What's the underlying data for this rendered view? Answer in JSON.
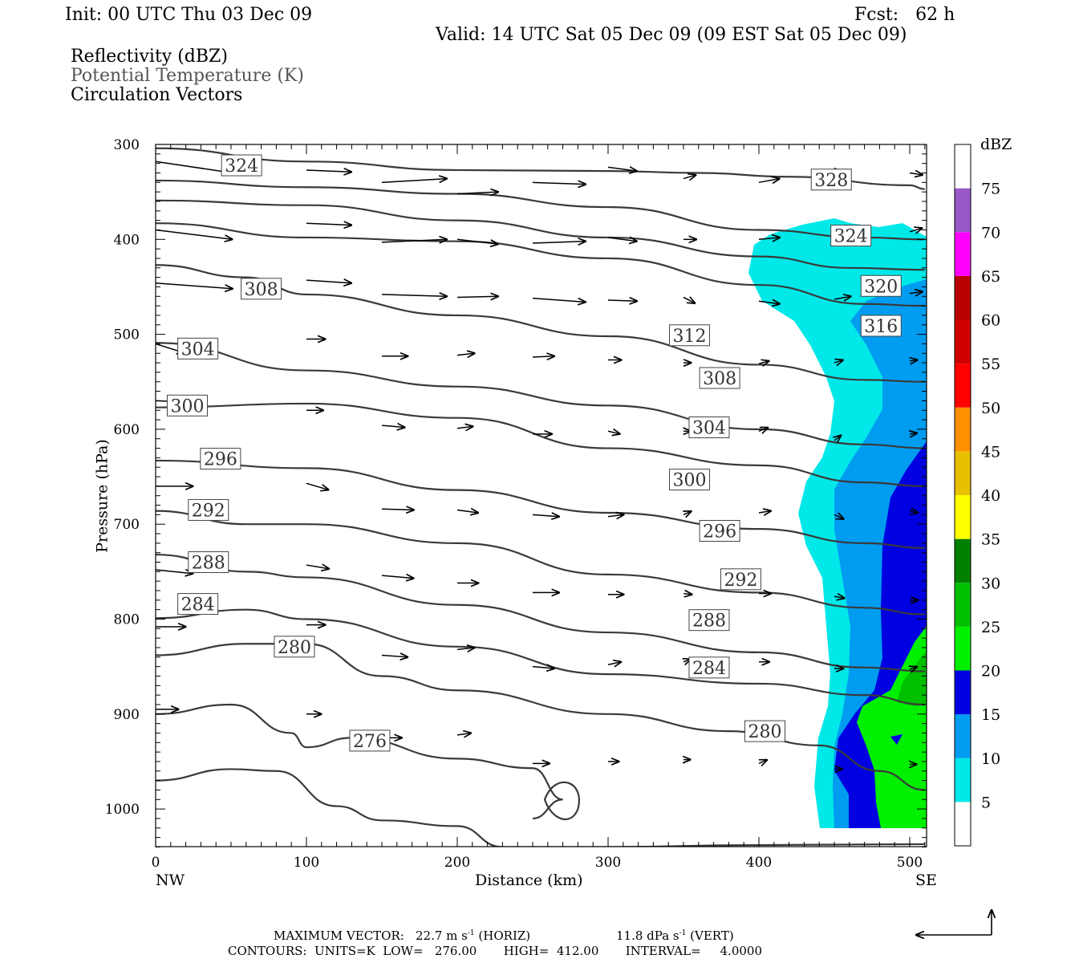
{
  "header": {
    "init": "Init: 00 UTC Thu 03 Dec 09",
    "fcst": "Fcst:   62 h",
    "valid": "Valid: 14 UTC Sat 05 Dec 09 (09 EST Sat 05 Dec 09)",
    "fields": [
      "Reflectivity (dBZ)",
      "Potential Temperature (K)",
      "Circulation Vectors"
    ]
  },
  "footer": {
    "maxvec_label": "MAXIMUM VECTOR:",
    "maxvec_horiz": "22.7 m s",
    "maxvec_horiz_unit": "(HORIZ)",
    "maxvec_vert": "11.8 dPa s",
    "maxvec_vert_unit": "(VERT)",
    "contours": "CONTOURS:  UNITS=K  LOW=   276.00       HIGH=  412.00       INTERVAL=     4.0000"
  },
  "colors": {
    "contour": "#3a3a3a",
    "refl": [
      "#ffffff",
      "#00e8e8",
      "#009cf0",
      "#0000e0",
      "#00f000",
      "#00c000",
      "#008000",
      "#ffff00",
      "#e8c000",
      "#ff9000",
      "#ff0000",
      "#d00000",
      "#b80000",
      "#ff00ff",
      "#9858c8",
      "#ffffff"
    ]
  },
  "chart_data": {
    "type": "cross-section",
    "xlabel": "Distance (km)",
    "ylabel": "Pressure (hPa)",
    "xlim": [
      0,
      510
    ],
    "ylim": [
      1040,
      300
    ],
    "x_ticks": [
      0,
      100,
      200,
      300,
      400,
      500
    ],
    "y_ticks": [
      300,
      400,
      500,
      600,
      700,
      800,
      900,
      1000
    ],
    "x_end_labels": {
      "left": "NW",
      "right": "SE"
    },
    "colorbar": {
      "title": "dBZ",
      "levels": [
        5,
        10,
        15,
        20,
        25,
        30,
        35,
        40,
        45,
        50,
        55,
        60,
        65,
        70,
        75
      ]
    },
    "contour_labels": [
      {
        "value": "324",
        "x": 57,
        "p": 322
      },
      {
        "value": "308",
        "x": 70,
        "p": 452
      },
      {
        "value": "304",
        "x": 28,
        "p": 515
      },
      {
        "value": "300",
        "x": 21,
        "p": 575
      },
      {
        "value": "296",
        "x": 43,
        "p": 631
      },
      {
        "value": "292",
        "x": 35,
        "p": 685
      },
      {
        "value": "288",
        "x": 35,
        "p": 740
      },
      {
        "value": "284",
        "x": 28,
        "p": 784
      },
      {
        "value": "280",
        "x": 92,
        "p": 829
      },
      {
        "value": "276",
        "x": 142,
        "p": 928
      },
      {
        "value": "328",
        "x": 448,
        "p": 337
      },
      {
        "value": "324",
        "x": 461,
        "p": 396
      },
      {
        "value": "320",
        "x": 481,
        "p": 449
      },
      {
        "value": "316",
        "x": 481,
        "p": 491
      },
      {
        "value": "312",
        "x": 354,
        "p": 501
      },
      {
        "value": "308",
        "x": 374,
        "p": 546
      },
      {
        "value": "304",
        "x": 367,
        "p": 598
      },
      {
        "value": "300",
        "x": 354,
        "p": 653
      },
      {
        "value": "296",
        "x": 374,
        "p": 707
      },
      {
        "value": "292",
        "x": 388,
        "p": 758
      },
      {
        "value": "288",
        "x": 367,
        "p": 801
      },
      {
        "value": "284",
        "x": 367,
        "p": 851
      },
      {
        "value": "280",
        "x": 404,
        "p": 918
      }
    ],
    "theta_lines": [
      [
        [
          0,
          304
        ],
        [
          100,
          318
        ],
        [
          200,
          327
        ],
        [
          300,
          328
        ],
        [
          360,
          330
        ],
        [
          420,
          334
        ],
        [
          500,
          343
        ],
        [
          510,
          347
        ]
      ],
      [
        [
          0,
          338
        ],
        [
          100,
          345
        ],
        [
          200,
          352
        ],
        [
          300,
          366
        ],
        [
          400,
          390
        ],
        [
          470,
          398
        ],
        [
          510,
          400
        ]
      ],
      [
        [
          0,
          359
        ],
        [
          100,
          364
        ],
        [
          200,
          380
        ],
        [
          300,
          398
        ],
        [
          400,
          418
        ],
        [
          460,
          430
        ],
        [
          510,
          432
        ]
      ],
      [
        [
          0,
          383
        ],
        [
          100,
          398
        ],
        [
          200,
          402
        ],
        [
          300,
          420
        ],
        [
          400,
          448
        ],
        [
          470,
          468
        ],
        [
          510,
          470
        ]
      ],
      [
        [
          0,
          427
        ],
        [
          60,
          440
        ],
        [
          100,
          458
        ],
        [
          200,
          480
        ],
        [
          300,
          502
        ],
        [
          400,
          532
        ],
        [
          470,
          548
        ],
        [
          510,
          550
        ]
      ],
      [
        [
          0,
          509
        ],
        [
          100,
          538
        ],
        [
          200,
          555
        ],
        [
          300,
          575
        ],
        [
          400,
          600
        ],
        [
          470,
          616
        ],
        [
          510,
          620
        ]
      ],
      [
        [
          0,
          577
        ],
        [
          100,
          573
        ],
        [
          200,
          588
        ],
        [
          300,
          620
        ],
        [
          400,
          638
        ],
        [
          470,
          656
        ],
        [
          510,
          660
        ]
      ],
      [
        [
          0,
          633
        ],
        [
          100,
          641
        ],
        [
          200,
          664
        ],
        [
          300,
          688
        ],
        [
          400,
          705
        ],
        [
          470,
          720
        ],
        [
          510,
          725
        ]
      ],
      [
        [
          0,
          686
        ],
        [
          60,
          700
        ],
        [
          100,
          700
        ],
        [
          200,
          720
        ],
        [
          300,
          753
        ],
        [
          400,
          772
        ],
        [
          470,
          788
        ],
        [
          510,
          795
        ]
      ],
      [
        [
          0,
          732
        ],
        [
          60,
          750
        ],
        [
          100,
          756
        ],
        [
          200,
          785
        ],
        [
          300,
          814
        ],
        [
          400,
          835
        ],
        [
          470,
          851
        ],
        [
          510,
          855
        ]
      ],
      [
        [
          0,
          799
        ],
        [
          60,
          790
        ],
        [
          100,
          800
        ],
        [
          200,
          829
        ],
        [
          300,
          858
        ],
        [
          400,
          868
        ],
        [
          470,
          880
        ],
        [
          510,
          890
        ]
      ],
      [
        [
          0,
          838
        ],
        [
          60,
          826
        ],
        [
          100,
          826
        ],
        [
          150,
          860
        ],
        [
          200,
          875
        ],
        [
          300,
          900
        ],
        [
          380,
          918
        ],
        [
          440,
          933
        ],
        [
          480,
          960
        ],
        [
          510,
          980
        ]
      ],
      [
        [
          0,
          900
        ],
        [
          50,
          890
        ],
        [
          90,
          920
        ],
        [
          100,
          935
        ],
        [
          130,
          925
        ],
        [
          200,
          947
        ],
        [
          250,
          957
        ],
        [
          270,
          990
        ],
        [
          250,
          1010
        ]
      ],
      [
        [
          0,
          970
        ],
        [
          50,
          958
        ],
        [
          80,
          960
        ],
        [
          120,
          997
        ],
        [
          150,
          1012
        ],
        [
          200,
          1018
        ],
        [
          230,
          1040
        ],
        [
          300,
          1040
        ],
        [
          400,
          1038
        ],
        [
          510,
          1037
        ]
      ]
    ],
    "vectors": [
      [
        0,
        318,
        0,
        330
      ],
      [
        100,
        327,
        100,
        329
      ],
      [
        150,
        340,
        150,
        336
      ],
      [
        200,
        352,
        200,
        350
      ],
      [
        250,
        340,
        250,
        342
      ],
      [
        300,
        324,
        300,
        328
      ],
      [
        350,
        336,
        350,
        332
      ],
      [
        400,
        340,
        400,
        336
      ],
      [
        450,
        325,
        450,
        333
      ],
      [
        500,
        330,
        500,
        332
      ],
      [
        0,
        390,
        0,
        400
      ],
      [
        100,
        383,
        100,
        385
      ],
      [
        150,
        403,
        150,
        400
      ],
      [
        200,
        400,
        200,
        405
      ],
      [
        250,
        404,
        250,
        402
      ],
      [
        300,
        398,
        300,
        402
      ],
      [
        350,
        400,
        350,
        400
      ],
      [
        400,
        400,
        400,
        398
      ],
      [
        450,
        395,
        450,
        390
      ],
      [
        500,
        392,
        500,
        388
      ],
      [
        0,
        446,
        0,
        452
      ],
      [
        100,
        443,
        100,
        446
      ],
      [
        150,
        458,
        150,
        460
      ],
      [
        200,
        461,
        200,
        460
      ],
      [
        250,
        462,
        250,
        466
      ],
      [
        300,
        464,
        300,
        465
      ],
      [
        350,
        461,
        350,
        468
      ],
      [
        400,
        465,
        400,
        468
      ],
      [
        450,
        463,
        450,
        460
      ],
      [
        500,
        457,
        500,
        455
      ],
      [
        0,
        510,
        0,
        520
      ],
      [
        100,
        505,
        100,
        505
      ],
      [
        150,
        523,
        150,
        523
      ],
      [
        200,
        522,
        200,
        520
      ],
      [
        250,
        524,
        250,
        523
      ],
      [
        300,
        527,
        300,
        527
      ],
      [
        350,
        530,
        350,
        530
      ],
      [
        400,
        531,
        400,
        528
      ],
      [
        450,
        530,
        450,
        527
      ],
      [
        500,
        528,
        500,
        527
      ],
      [
        0,
        570,
        0,
        571
      ],
      [
        100,
        580,
        100,
        580
      ],
      [
        150,
        596,
        150,
        598
      ],
      [
        200,
        599,
        200,
        597
      ],
      [
        250,
        605,
        250,
        605
      ],
      [
        300,
        602,
        300,
        605
      ],
      [
        350,
        602,
        350,
        602
      ],
      [
        400,
        602,
        400,
        598
      ],
      [
        450,
        612,
        450,
        605
      ],
      [
        500,
        605,
        500,
        604
      ],
      [
        0,
        660,
        0,
        660
      ],
      [
        100,
        657,
        100,
        664
      ],
      [
        150,
        684,
        150,
        685
      ],
      [
        200,
        685,
        200,
        688
      ],
      [
        250,
        690,
        250,
        692
      ],
      [
        300,
        692,
        300,
        690
      ],
      [
        350,
        690,
        350,
        686
      ],
      [
        400,
        688,
        400,
        686
      ],
      [
        450,
        690,
        450,
        695
      ],
      [
        500,
        686,
        500,
        688
      ],
      [
        0,
        748,
        0,
        752
      ],
      [
        100,
        743,
        100,
        747
      ],
      [
        150,
        754,
        150,
        757
      ],
      [
        200,
        762,
        200,
        762
      ],
      [
        250,
        772,
        250,
        772
      ],
      [
        300,
        774,
        300,
        774
      ],
      [
        350,
        773,
        350,
        774
      ],
      [
        400,
        773,
        400,
        773
      ],
      [
        450,
        776,
        450,
        778
      ],
      [
        500,
        780,
        500,
        780
      ],
      [
        0,
        808,
        0,
        808
      ],
      [
        100,
        806,
        100,
        806
      ],
      [
        150,
        838,
        150,
        840
      ],
      [
        200,
        832,
        200,
        830
      ],
      [
        250,
        850,
        250,
        852
      ],
      [
        300,
        848,
        300,
        845
      ],
      [
        350,
        845,
        350,
        842
      ],
      [
        400,
        845,
        400,
        845
      ],
      [
        450,
        852,
        450,
        852
      ],
      [
        500,
        853,
        500,
        850
      ],
      [
        0,
        895,
        0,
        895
      ],
      [
        100,
        900,
        100,
        900
      ],
      [
        150,
        925,
        150,
        925
      ],
      [
        200,
        922,
        200,
        920
      ],
      [
        250,
        952,
        250,
        952
      ],
      [
        300,
        950,
        300,
        950
      ],
      [
        350,
        948,
        350,
        948
      ],
      [
        400,
        952,
        400,
        948
      ],
      [
        450,
        958,
        450,
        958
      ],
      [
        500,
        953,
        500,
        953
      ]
    ]
  }
}
